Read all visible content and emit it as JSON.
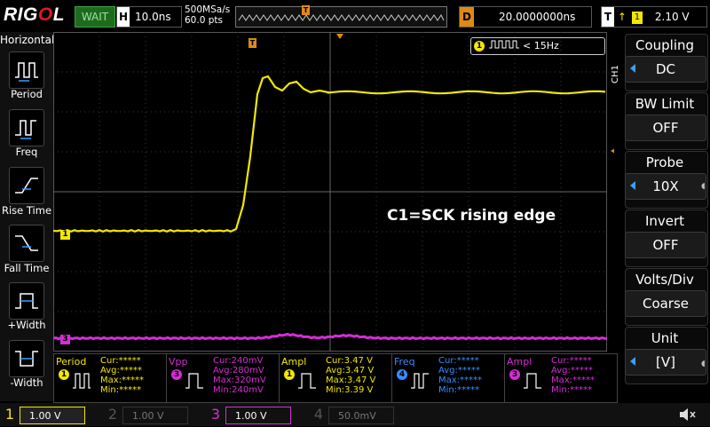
{
  "header": {
    "brand_left": "RIG",
    "brand_accent": "O",
    "brand_right": "L",
    "run_state": "WAIT",
    "timebase_key": "H",
    "timebase_value": "10.0ns",
    "sample_rate": "500MSa/s",
    "mem_depth": "60.0 pts",
    "trigger_pos_marker": "T",
    "delay_key": "D",
    "delay_value": "20.0000000ns",
    "trig_key": "T",
    "trig_edge": "↑",
    "trig_channel": "1",
    "trig_level": "2.10 V"
  },
  "left_panel": {
    "title": "Horizontal",
    "items": [
      {
        "label": "Period"
      },
      {
        "label": "Freq"
      },
      {
        "label": "Rise Time"
      },
      {
        "label": "Fall Time"
      },
      {
        "label": "+Width"
      },
      {
        "label": "-Width"
      }
    ]
  },
  "waveform": {
    "annotation": "C1=SCK rising edge",
    "freq_counter_channel": "1",
    "freq_counter_value": "< 15Hz",
    "ch1_marker": "1",
    "ch3_marker": "3",
    "trigger_level_marker": "T",
    "colors": {
      "ch1": "#f2e800",
      "ch3": "#d62dd6",
      "ch4": "#3a8cff",
      "grid": "#444444",
      "trigger": "#e08a14"
    }
  },
  "right_menu": {
    "tab": "CH1",
    "items": [
      {
        "title": "Coupling",
        "value": "DC"
      },
      {
        "title": "BW Limit",
        "value": "OFF"
      },
      {
        "title": "Probe",
        "value": "10X"
      },
      {
        "title": "Invert",
        "value": "OFF"
      },
      {
        "title": "Volts/Div",
        "value": "Coarse"
      },
      {
        "title": "Unit",
        "value": "[V]"
      }
    ]
  },
  "measurements": [
    {
      "name": "Period",
      "channel": "1",
      "rows": [
        "Cur:*****",
        "Avg:*****",
        "Max:*****",
        "Min:*****"
      ]
    },
    {
      "name": "Vpp",
      "channel": "3",
      "rows": [
        "Cur:240mV",
        "Avg:280mV",
        "Max:320mV",
        "Min:240mV"
      ]
    },
    {
      "name": "Ampl",
      "channel": "1",
      "rows": [
        "Cur:3.47 V",
        "Avg:3.47 V",
        "Max:3.47 V",
        "Min:3.39 V"
      ]
    },
    {
      "name": "Freq",
      "channel": "4",
      "rows": [
        "Cur:*****",
        "Avg:*****",
        "Max:*****",
        "Min:*****"
      ]
    },
    {
      "name": "Ampl",
      "channel": "3",
      "rows": [
        "Cur:*****",
        "Avg:*****",
        "Max:*****",
        "Min:*****"
      ]
    }
  ],
  "channels_bar": [
    {
      "num": "1",
      "scale": "1.00 V"
    },
    {
      "num": "2",
      "scale": "1.00 V"
    },
    {
      "num": "3",
      "scale": "1.00 V"
    },
    {
      "num": "4",
      "scale": "50.0mV"
    }
  ],
  "speaker_icon": "speaker-mute-icon"
}
